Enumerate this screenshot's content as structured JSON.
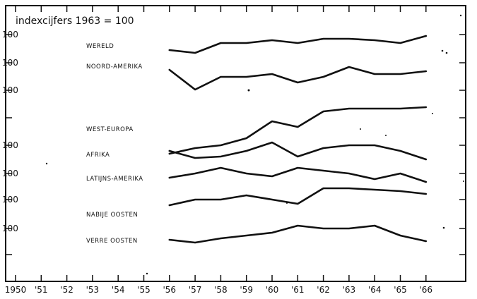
{
  "chart_data": {
    "type": "line",
    "title": "indexcijfers  1963 = 100",
    "x": [
      1950,
      1951,
      1952,
      1953,
      1954,
      1955,
      1956,
      1957,
      1958,
      1959,
      1960,
      1961,
      1962,
      1963,
      1964,
      1965,
      1966
    ],
    "x_tick_labels": [
      "1950",
      "'51",
      "'52",
      "'53",
      "'54",
      "'55",
      "'56",
      "'57",
      "'58",
      "'59",
      "'60",
      "'61",
      "'62",
      "'63",
      "'64",
      "'65",
      "'66"
    ],
    "y_tick_labels": [
      "100",
      "100",
      "100",
      "100",
      "100",
      "100",
      "100"
    ],
    "series": [
      {
        "name": "WERELD",
        "x": [
          1956,
          1957,
          1958,
          1959,
          1960,
          1961,
          1962,
          1963,
          1964,
          1965,
          1966
        ],
        "offset_level": 100,
        "values": [
          89,
          87,
          94,
          94,
          96,
          94,
          97,
          97,
          96,
          94,
          99
        ]
      },
      {
        "name": "NOORD-AMERIKA",
        "x": [
          1956,
          1957,
          1958,
          1959,
          1960,
          1961,
          1962,
          1963,
          1964,
          1965,
          1966
        ],
        "offset_level": 100,
        "values": [
          95,
          81,
          90,
          90,
          92,
          86,
          90,
          97,
          92,
          92,
          94
        ]
      },
      {
        "name": "WEST-EUROPA",
        "x": [
          1956,
          1957,
          1958,
          1959,
          1960,
          1961,
          1962,
          1963,
          1964,
          1965,
          1966
        ],
        "offset_level": 100,
        "values": [
          55,
          59,
          61,
          66,
          78,
          74,
          85,
          87,
          87,
          87,
          88
        ]
      },
      {
        "name": "AFRIKA",
        "x": [
          1956,
          1957,
          1958,
          1959,
          1960,
          1961,
          1962,
          1963,
          1964,
          1965,
          1966
        ],
        "offset_level": 100,
        "values": [
          96,
          91,
          92,
          96,
          102,
          92,
          98,
          100,
          100,
          96,
          90
        ]
      },
      {
        "name": "LATIJNS-AMERIKA",
        "x": [
          1956,
          1957,
          1958,
          1959,
          1960,
          1961,
          1962,
          1963,
          1964,
          1965,
          1966
        ],
        "offset_level": 100,
        "values": [
          97,
          100,
          104,
          100,
          98,
          104,
          102,
          100,
          96,
          100,
          94
        ]
      },
      {
        "name": "NABIJE OOSTEN",
        "x": [
          1956,
          1957,
          1958,
          1959,
          1960,
          1961,
          1962,
          1963,
          1964,
          1965,
          1966
        ],
        "offset_level": 100,
        "values": [
          96,
          100,
          100,
          103,
          100,
          97,
          108,
          108,
          107,
          106,
          104
        ]
      },
      {
        "name": "VERRE OOSTEN",
        "x": [
          1956,
          1957,
          1958,
          1959,
          1960,
          1961,
          1962,
          1963,
          1964,
          1965,
          1966
        ],
        "offset_level": 100,
        "values": [
          92,
          90,
          93,
          95,
          97,
          102,
          100,
          100,
          102,
          95,
          91
        ]
      }
    ],
    "grid": false,
    "legend": "inline labels"
  }
}
